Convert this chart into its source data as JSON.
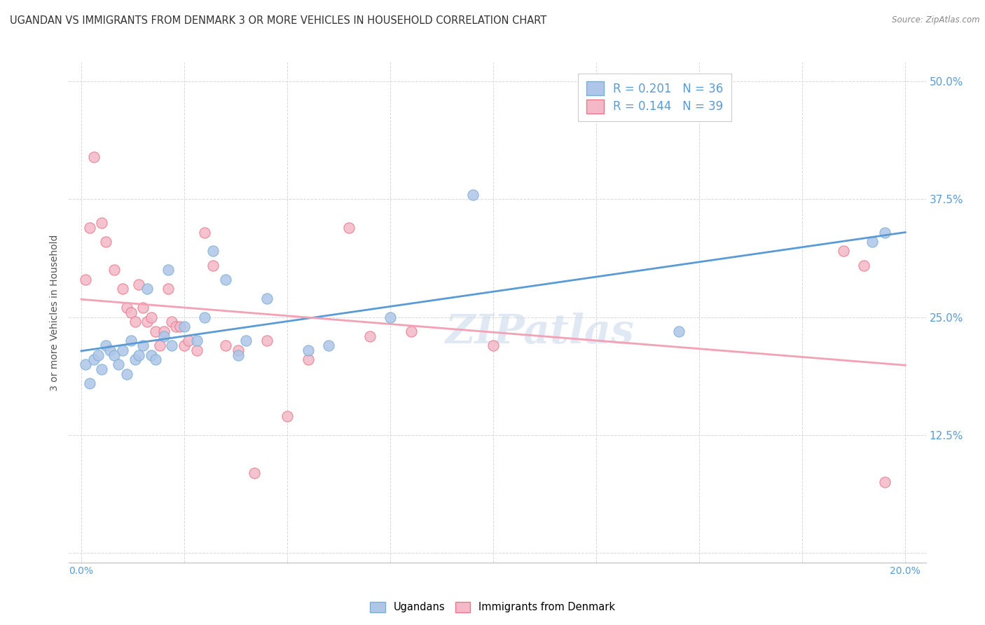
{
  "title": "UGANDAN VS IMMIGRANTS FROM DENMARK 3 OR MORE VEHICLES IN HOUSEHOLD CORRELATION CHART",
  "source": "Source: ZipAtlas.com",
  "xlabel_vals": [
    0.0,
    2.5,
    5.0,
    7.5,
    10.0,
    12.5,
    15.0,
    17.5,
    20.0
  ],
  "ylabel_vals": [
    0.0,
    12.5,
    25.0,
    37.5,
    50.0
  ],
  "xlim": [
    -0.3,
    20.5
  ],
  "ylim": [
    -1.0,
    52.0
  ],
  "ylabel": "3 or more Vehicles in Household",
  "legend_label1": "Ugandans",
  "legend_label2": "Immigrants from Denmark",
  "r1": "0.201",
  "n1": "36",
  "r2": "0.144",
  "n2": "39",
  "color_blue": "#aec6e8",
  "color_pink": "#f4b8c8",
  "edge_blue": "#7aafd4",
  "edge_pink": "#e8788a",
  "line_blue": "#5b9bd5",
  "line_pink": "#f4a0b5",
  "scatter_blue_x": [
    0.1,
    0.2,
    0.3,
    0.4,
    0.5,
    0.6,
    0.7,
    0.8,
    0.9,
    1.0,
    1.1,
    1.2,
    1.3,
    1.4,
    1.5,
    1.6,
    1.7,
    1.8,
    2.0,
    2.1,
    2.2,
    2.5,
    2.8,
    3.0,
    3.2,
    3.5,
    3.8,
    4.0,
    4.5,
    5.5,
    6.0,
    7.5,
    9.5,
    14.5,
    19.2,
    19.5
  ],
  "scatter_blue_y": [
    20.0,
    18.0,
    20.5,
    21.0,
    19.5,
    22.0,
    21.5,
    21.0,
    20.0,
    21.5,
    19.0,
    22.5,
    20.5,
    21.0,
    22.0,
    28.0,
    21.0,
    20.5,
    23.0,
    30.0,
    22.0,
    24.0,
    22.5,
    25.0,
    32.0,
    29.0,
    21.0,
    22.5,
    27.0,
    21.5,
    22.0,
    25.0,
    38.0,
    23.5,
    33.0,
    34.0
  ],
  "scatter_pink_x": [
    0.1,
    0.2,
    0.3,
    0.5,
    0.6,
    0.8,
    1.0,
    1.1,
    1.2,
    1.3,
    1.4,
    1.5,
    1.6,
    1.7,
    1.8,
    1.9,
    2.0,
    2.1,
    2.2,
    2.3,
    2.4,
    2.5,
    2.6,
    2.8,
    3.0,
    3.2,
    3.5,
    3.8,
    4.2,
    4.5,
    5.0,
    5.5,
    6.5,
    7.0,
    8.0,
    10.0,
    18.5,
    19.0,
    19.5
  ],
  "scatter_pink_y": [
    29.0,
    34.5,
    42.0,
    35.0,
    33.0,
    30.0,
    28.0,
    26.0,
    25.5,
    24.5,
    28.5,
    26.0,
    24.5,
    25.0,
    23.5,
    22.0,
    23.5,
    28.0,
    24.5,
    24.0,
    24.0,
    22.0,
    22.5,
    21.5,
    34.0,
    30.5,
    22.0,
    21.5,
    8.5,
    22.5,
    14.5,
    20.5,
    34.5,
    23.0,
    23.5,
    22.0,
    32.0,
    30.5,
    7.5
  ],
  "watermark": "ZIPatlas",
  "bg_color": "#ffffff",
  "grid_color": "#d8d8d8",
  "title_fontsize": 10.5,
  "axis_label_fontsize": 10,
  "tick_fontsize": 10
}
